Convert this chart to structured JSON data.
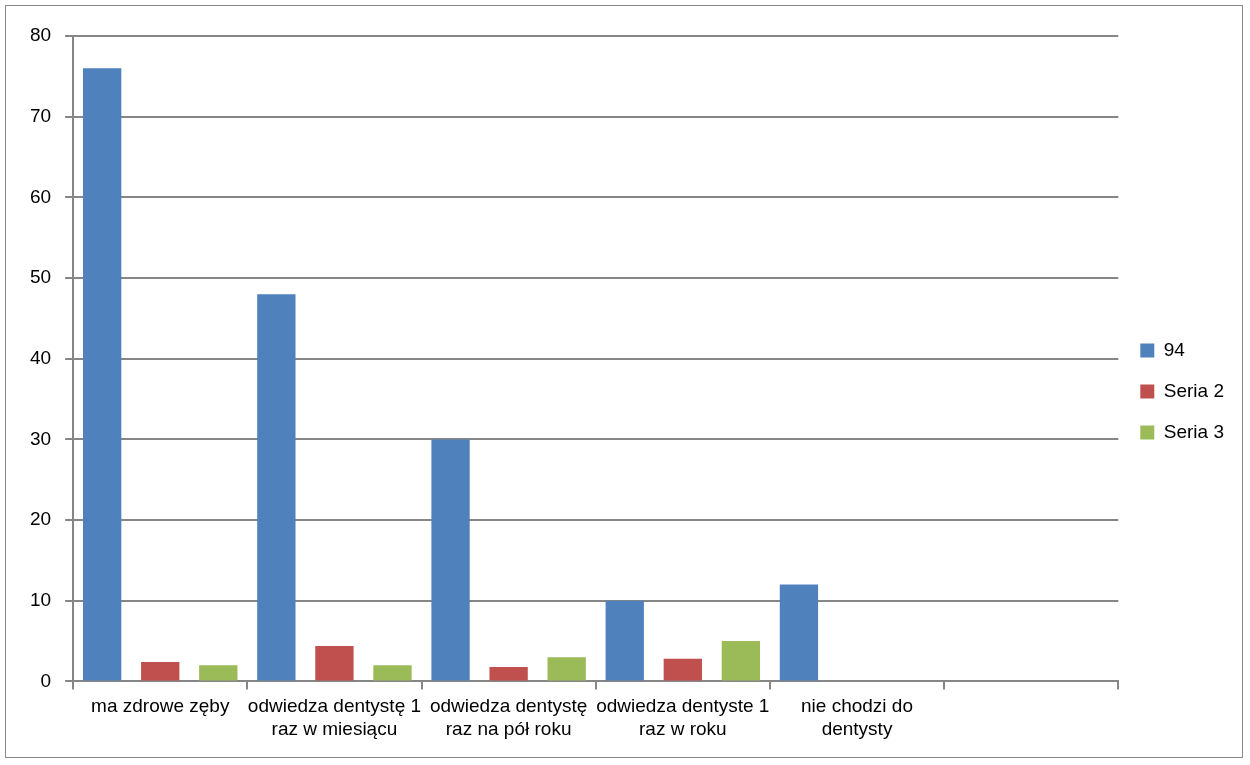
{
  "chart_data": {
    "type": "bar",
    "categories": [
      "ma zdrowe zęby",
      "odwiedza dentystę 1 raz w miesiącu",
      "odwiedza dentystę raz na pół roku",
      "odwiedza dentyste 1 raz w roku",
      "nie chodzi do dentysty",
      null
    ],
    "series": [
      {
        "name": "94",
        "color": "#4f81bd",
        "values": [
          76,
          48,
          30,
          10,
          12,
          null
        ]
      },
      {
        "name": "Seria 2",
        "color": "#c0504d",
        "values": [
          2.4,
          4.4,
          1.8,
          2.8,
          null,
          null
        ]
      },
      {
        "name": "Seria 3",
        "color": "#9bbb59",
        "values": [
          2,
          2,
          3,
          5,
          null,
          null
        ]
      }
    ],
    "ylim": [
      0,
      80
    ],
    "yticks": [
      0,
      10,
      20,
      30,
      40,
      50,
      60,
      70,
      80
    ],
    "grid": "y",
    "legend": "right"
  }
}
